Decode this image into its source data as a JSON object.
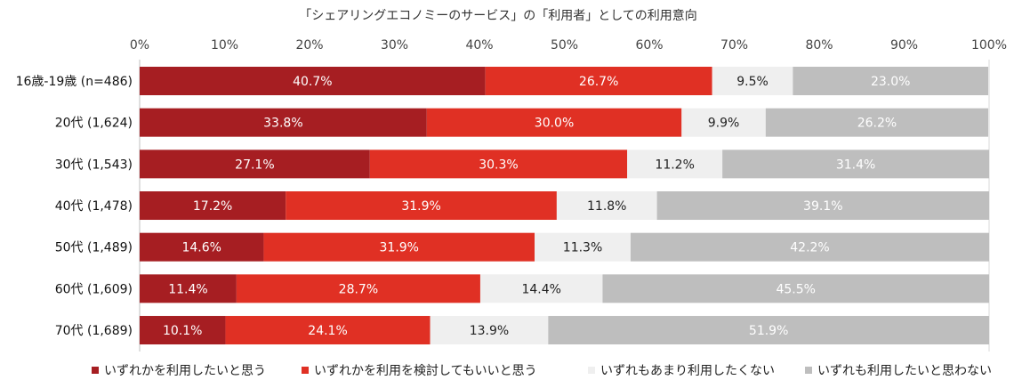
{
  "chart_data": {
    "type": "bar",
    "orientation": "horizontal",
    "stacked": true,
    "title": "「シェアリングエコノミーのサービス」の「利用者」としての利用意向",
    "xlim": [
      0,
      100
    ],
    "x_ticks": [
      "0%",
      "10%",
      "20%",
      "30%",
      "40%",
      "50%",
      "60%",
      "70%",
      "80%",
      "90%",
      "100%"
    ],
    "grid": false,
    "legend_position": "bottom",
    "categories": [
      "16歳-19歳 (n=486)",
      "20代 (1,624)",
      "30代 (1,543)",
      "40代 (1,478)",
      "50代 (1,489)",
      "60代 (1,609)",
      "70代 (1,689)"
    ],
    "series": [
      {
        "name": "いずれかを利用したいと思う",
        "color": "#a61e22",
        "label_color": "#ffffff",
        "values": [
          40.7,
          33.8,
          27.1,
          17.2,
          14.6,
          11.4,
          10.1
        ],
        "labels": [
          "40.7%",
          "33.8%",
          "27.1%",
          "17.2%",
          "14.6%",
          "11.4%",
          "10.1%"
        ]
      },
      {
        "name": "いずれかを利用を検討してもいいと思う",
        "color": "#e03024",
        "label_color": "#ffffff",
        "values": [
          26.7,
          30.0,
          30.3,
          31.9,
          31.9,
          28.7,
          24.1
        ],
        "labels": [
          "26.7%",
          "30.0%",
          "30.3%",
          "31.9%",
          "31.9%",
          "28.7%",
          "24.1%"
        ]
      },
      {
        "name": "いずれもあまり利用したくない",
        "color": "#efefef",
        "label_color": "#222222",
        "values": [
          9.5,
          9.9,
          11.2,
          11.8,
          11.3,
          14.4,
          13.9
        ],
        "labels": [
          "9.5%",
          "9.9%",
          "11.2%",
          "11.8%",
          "11.3%",
          "14.4%",
          "13.9%"
        ]
      },
      {
        "name": "いずれも利用したいと思わない",
        "color": "#bebebe",
        "label_color": "#ffffff",
        "values": [
          23.0,
          26.2,
          31.4,
          39.1,
          42.2,
          45.5,
          51.9
        ],
        "labels": [
          "23.0%",
          "26.2%",
          "31.4%",
          "39.1%",
          "42.2%",
          "45.5%",
          "51.9%"
        ]
      }
    ]
  }
}
